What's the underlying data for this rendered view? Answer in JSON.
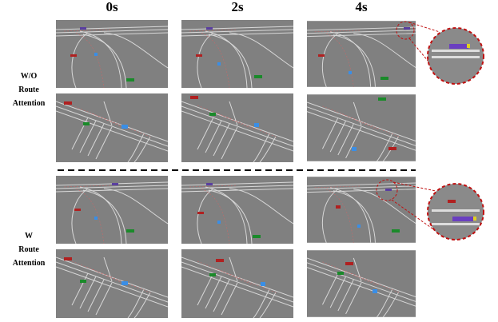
{
  "columns": [
    "0s",
    "2s",
    "4s"
  ],
  "rows": [
    {
      "label": [
        "W/O",
        "Route",
        "Attention"
      ]
    },
    {
      "label": [
        "W",
        "Route",
        "Attention"
      ]
    }
  ]
}
